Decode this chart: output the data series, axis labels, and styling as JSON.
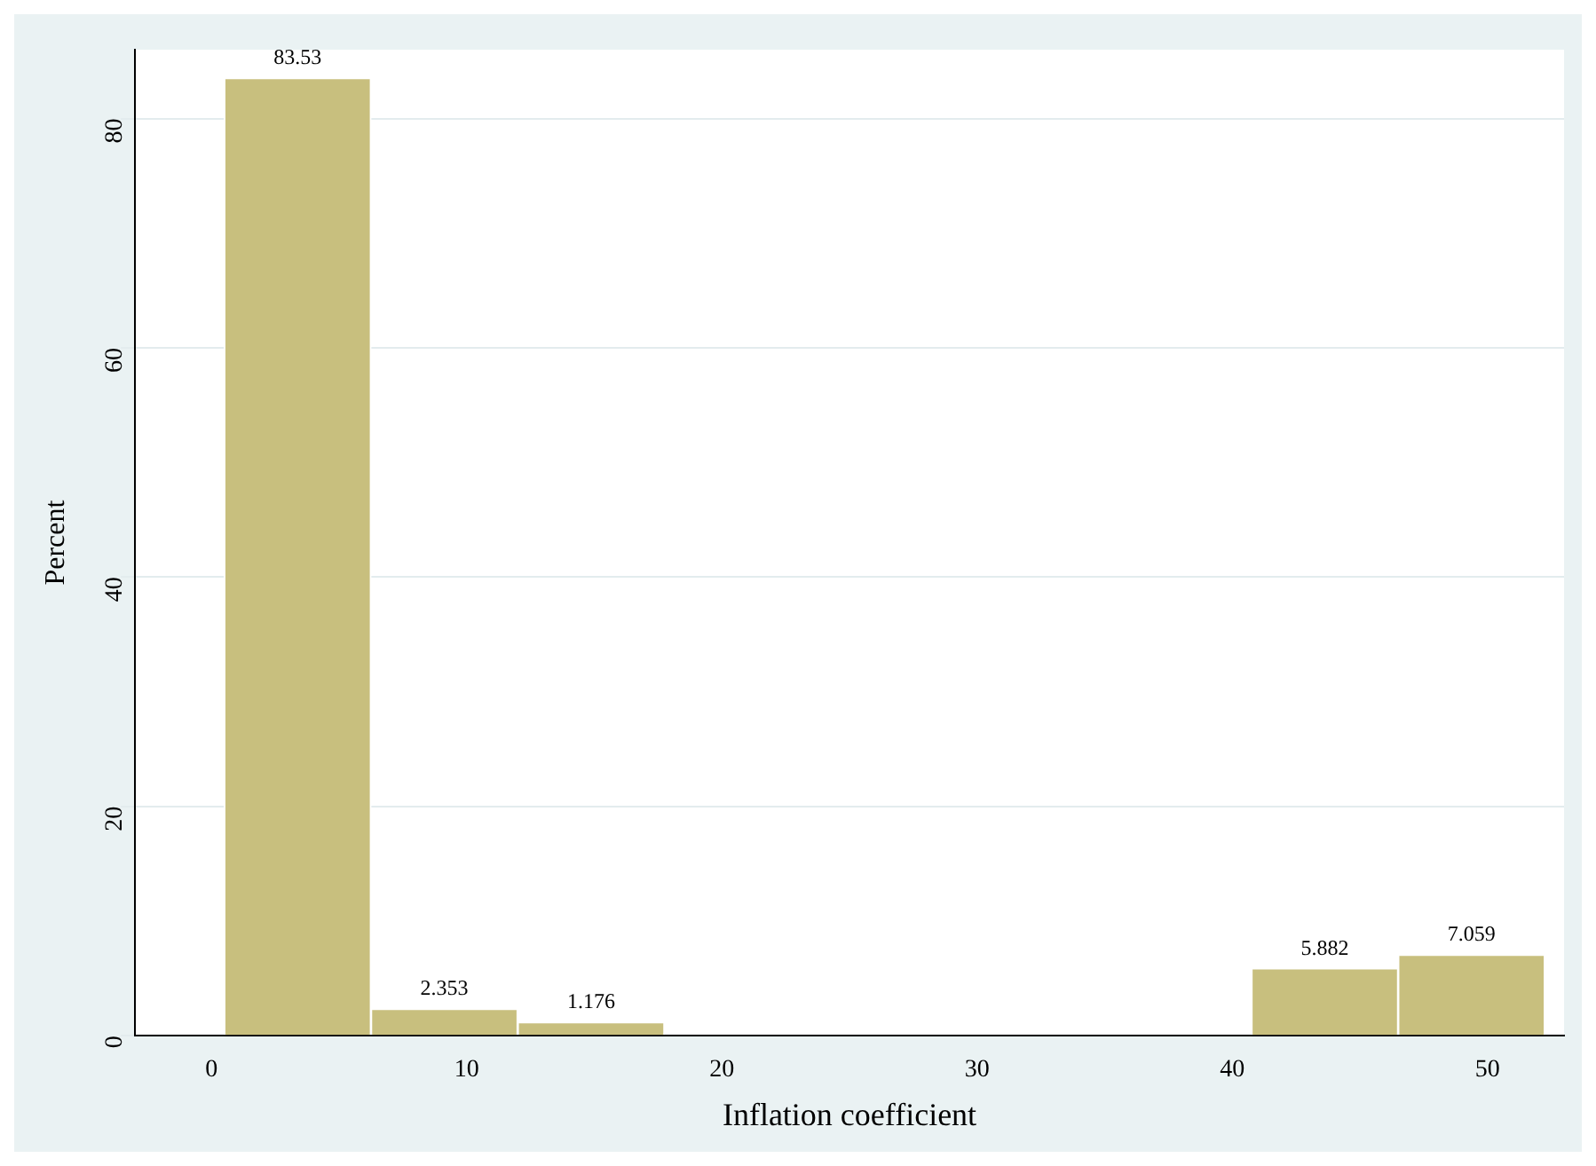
{
  "chart_data": {
    "type": "histogram",
    "xlabel": "Inflation coefficient",
    "ylabel": "Percent",
    "bins": [
      0.5,
      6.25,
      12,
      17.75,
      23.5,
      29.25,
      35,
      40.75,
      46.5,
      52.25
    ],
    "values": [
      83.53,
      2.353,
      1.176,
      0,
      0,
      0,
      0,
      5.882,
      7.059
    ],
    "value_labels": [
      "83.53",
      "2.353",
      "1.176",
      null,
      null,
      null,
      null,
      "5.882",
      "7.059"
    ],
    "color": "#c8bf7e",
    "xlim": [
      -3,
      53
    ],
    "xticks": [
      0,
      10,
      20,
      30,
      40,
      50
    ],
    "ylim": [
      0,
      86
    ],
    "yticks": [
      0,
      20,
      40,
      60,
      80
    ],
    "grid": "y",
    "legend": false
  }
}
